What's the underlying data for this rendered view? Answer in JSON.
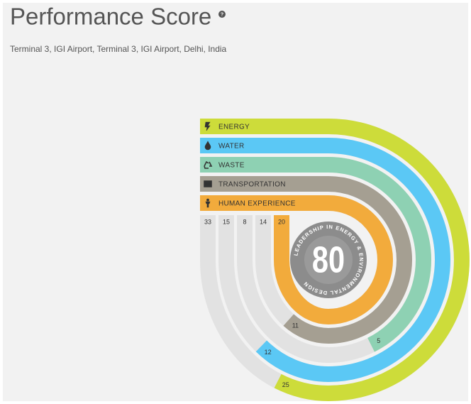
{
  "header": {
    "title": "Performance Score",
    "subtitle": "Terminal 3, IGI Airport, Terminal 3, IGI Airport, Delhi, India"
  },
  "score": 80,
  "badge_text": "LEADERSHIP IN ENERGY & ENVIRONMENTAL DESIGN",
  "categories": [
    {
      "label": "ENERGY",
      "score": 25,
      "max": 33,
      "color": "#cddc3a"
    },
    {
      "label": "WATER",
      "score": 12,
      "max": 15,
      "color": "#5bc8f5"
    },
    {
      "label": "WASTE",
      "score": 5,
      "max": 8,
      "color": "#8ed1b3"
    },
    {
      "label": "TRANSPORTATION",
      "score": 11,
      "max": 14,
      "color": "#a59f92"
    },
    {
      "label": "HUMAN EXPERIENCE",
      "score": 20,
      "max": 20,
      "color": "#f2ab3c"
    }
  ]
}
